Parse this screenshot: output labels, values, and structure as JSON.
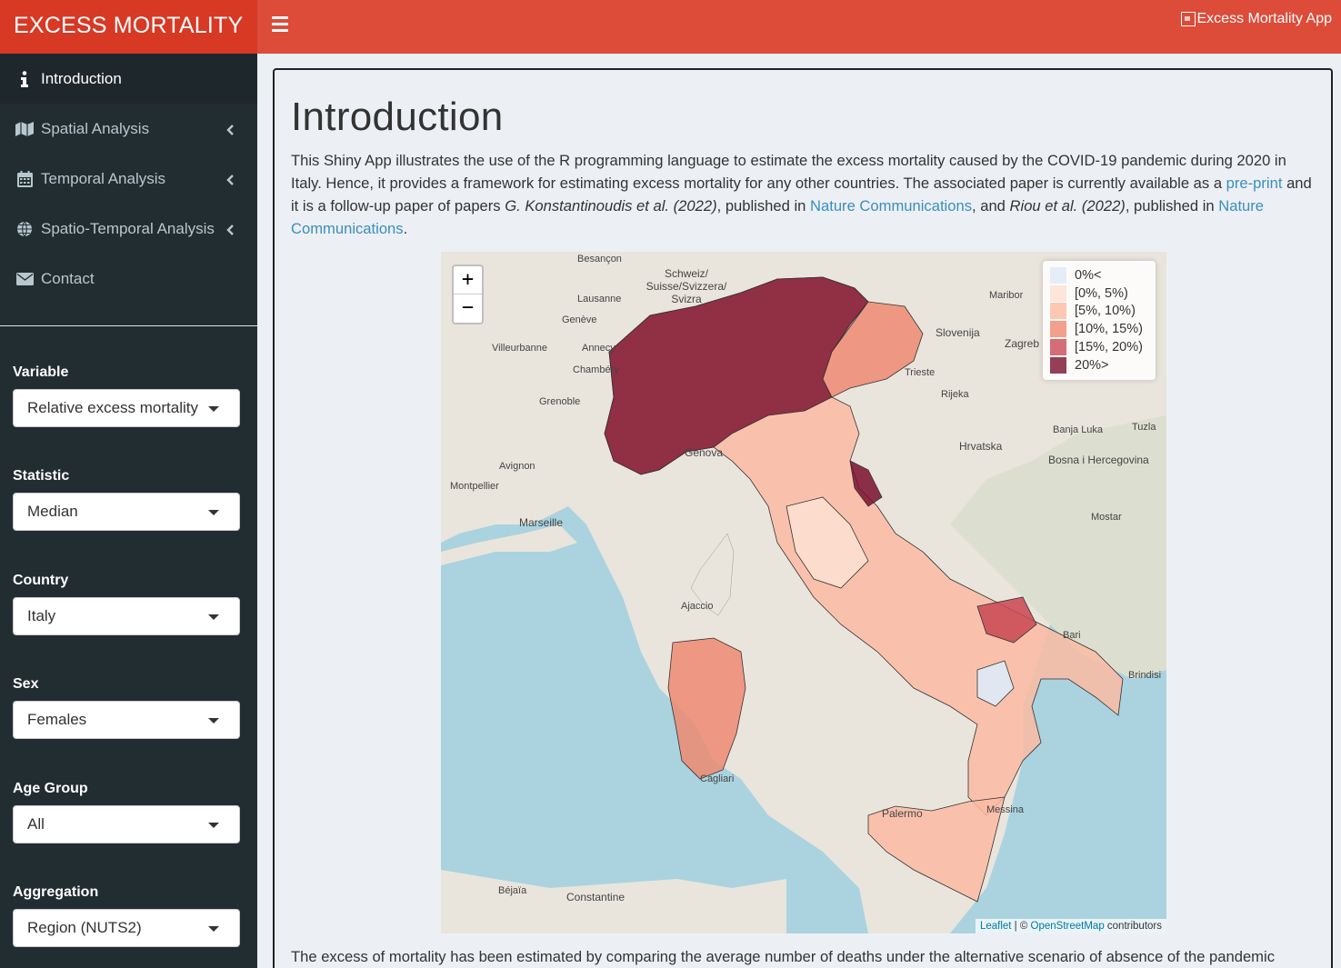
{
  "header": {
    "logo": "EXCESS MORTALITY",
    "image_alt": "Excess Mortality App"
  },
  "sidebar": {
    "items": [
      {
        "label": "Introduction",
        "icon": "info-icon"
      },
      {
        "label": "Spatial Analysis",
        "icon": "map-icon"
      },
      {
        "label": "Temporal Analysis",
        "icon": "calendar-icon"
      },
      {
        "label": "Spatio-Temporal Analysis",
        "icon": "globe-icon"
      },
      {
        "label": "Contact",
        "icon": "envelope-icon"
      }
    ],
    "controls": [
      {
        "label": "Variable",
        "value": "Relative excess mortality"
      },
      {
        "label": "Statistic",
        "value": "Median"
      },
      {
        "label": "Country",
        "value": "Italy"
      },
      {
        "label": "Sex",
        "value": "Females"
      },
      {
        "label": "Age Group",
        "value": "All"
      },
      {
        "label": "Aggregation",
        "value": "Region (NUTS2)"
      }
    ]
  },
  "main": {
    "title": "Introduction",
    "intro": {
      "p1": "This Shiny App illustrates the use of the R programming language to estimate the excess mortality caused by the COVID-19 pandemic during 2020 in Italy. Hence, it provides a framework for estimating excess mortality for any other countries. The associated paper is currently available as a ",
      "link_preprint": "pre-print",
      "p2": " and it is a follow-up paper of papers ",
      "cite1": "G. Konstantinoudis et al. (2022)",
      "p3": ", published in ",
      "link_nc1": "Nature Communications",
      "p4": ", and ",
      "cite2": "Riou et al. (2022)",
      "p5": ", published in ",
      "link_nc2": "Nature Communications",
      "p6": "."
    },
    "bottom_text": "The excess of mortality has been estimated by comparing the average number of deaths under the alternative scenario of absence of the pandemic"
  },
  "map": {
    "zoom_in": "+",
    "zoom_out": "−",
    "legend": [
      {
        "label": "0%<",
        "color": "#deebf7"
      },
      {
        "label": "[0%, 5%)",
        "color": "#fde0d2"
      },
      {
        "label": "[5%, 10%)",
        "color": "#fbbba3"
      },
      {
        "label": "[10%, 15%)",
        "color": "#ef8a72"
      },
      {
        "label": "[15%, 20%)",
        "color": "#c94a55"
      },
      {
        "label": "20%>",
        "color": "#7a0f2e"
      }
    ],
    "attribution": {
      "leaflet": "Leaflet",
      "sep": " | © ",
      "osm": "OpenStreetMap",
      "suffix": " contributors"
    },
    "places": [
      "Besançon",
      "Schweiz/ Suisse/Svizzera/ Svizra",
      "Lausanne",
      "Genève",
      "Villeurbanne",
      "Annecy",
      "Chambéry",
      "Grenoble",
      "Avignon",
      "Montpellier",
      "Marseille",
      "Genova",
      "Slovenija",
      "Zagreb",
      "Trieste",
      "Rijeka",
      "Hrvatska",
      "Banja Luka",
      "Tuzla",
      "Bosna i Hercegovina",
      "Mostar",
      "Ajaccio",
      "Bari",
      "Brindisi",
      "Palermo",
      "Messina",
      "Cagliari",
      "Constantine",
      "Béjaïa",
      "Maribor"
    ]
  }
}
